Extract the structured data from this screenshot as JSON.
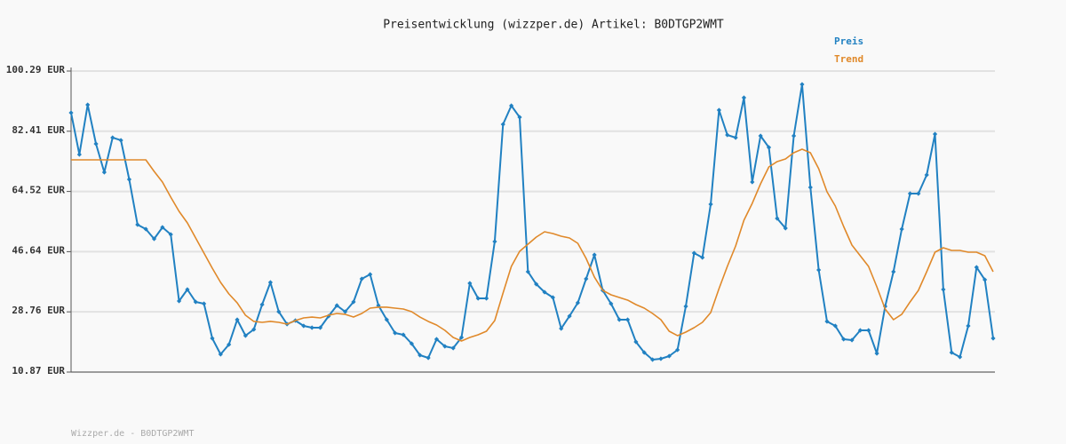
{
  "chart_data": {
    "type": "line",
    "title": "Preisentwicklung (wizzper.de) Artikel: B0DTGP2WMT",
    "footer": "Wizzper.de - B0DTGP2WMT",
    "ylim": [
      10.87,
      100.29
    ],
    "yticks": [
      {
        "value": 10.87,
        "label": "10.87 EUR"
      },
      {
        "value": 28.76,
        "label": "28.76 EUR"
      },
      {
        "value": 46.64,
        "label": "46.64 EUR"
      },
      {
        "value": 64.52,
        "label": "64.52 EUR"
      },
      {
        "value": 82.41,
        "label": "82.41 EUR"
      },
      {
        "value": 100.29,
        "label": "100.29 EUR"
      }
    ],
    "grid": true,
    "series": [
      {
        "name": "Preis",
        "color": "#2181c2",
        "markers": true,
        "values": [
          87.9,
          75.5,
          90.27,
          78.66,
          70.22,
          80.51,
          79.72,
          68.11,
          54.66,
          53.34,
          50.44,
          53.87,
          51.76,
          31.97,
          35.4,
          31.71,
          31.18,
          20.89,
          16.15,
          19.05,
          26.43,
          21.69,
          23.53,
          30.92,
          37.51,
          28.81,
          25.11,
          26.17,
          24.59,
          24.06,
          24.06,
          27.49,
          30.65,
          28.81,
          31.71,
          38.57,
          39.89,
          30.65,
          26.43,
          22.48,
          21.95,
          19.31,
          15.88,
          15.09,
          20.63,
          18.52,
          17.99,
          21.16,
          37.25,
          32.76,
          32.76,
          49.65,
          84.46,
          90.0,
          86.57,
          40.68,
          36.98,
          34.61,
          33.03,
          23.8,
          27.49,
          31.44,
          38.57,
          45.69,
          35.14,
          31.18,
          26.43,
          26.43,
          19.84,
          16.67,
          14.56,
          14.83,
          15.62,
          17.46,
          30.39,
          46.22,
          44.9,
          60.72,
          88.69,
          81.3,
          80.51,
          92.38,
          67.32,
          81.04,
          77.61,
          56.5,
          53.6,
          81.04,
          96.33,
          65.74,
          41.2,
          25.91,
          24.59,
          20.63,
          20.37,
          23.27,
          23.27,
          16.41,
          30.39,
          40.68,
          53.34,
          63.89,
          63.89,
          69.43,
          81.56,
          35.4,
          16.67,
          15.35,
          24.59,
          42.0,
          38.3,
          20.89
        ]
      },
      {
        "name": "Trend",
        "color": "#e0892a",
        "markers": false,
        "values": [
          73.91,
          73.91,
          73.91,
          73.91,
          73.91,
          73.91,
          73.91,
          73.91,
          73.91,
          73.91,
          70.48,
          67.32,
          62.83,
          58.61,
          55.19,
          50.7,
          46.22,
          41.73,
          37.51,
          34.08,
          31.44,
          27.75,
          25.91,
          25.64,
          25.91,
          25.64,
          25.11,
          26.17,
          26.96,
          27.22,
          26.96,
          27.75,
          28.28,
          28.02,
          27.22,
          28.28,
          29.86,
          30.13,
          30.13,
          29.86,
          29.6,
          28.81,
          27.22,
          25.91,
          24.85,
          23.27,
          21.16,
          20.1,
          21.16,
          21.95,
          23.0,
          26.17,
          34.35,
          42.26,
          46.74,
          48.85,
          50.96,
          52.55,
          52.02,
          51.23,
          50.7,
          49.12,
          44.63,
          39.09,
          35.14,
          33.82,
          33.03,
          32.24,
          30.92,
          29.86,
          28.28,
          26.43,
          23.0,
          21.69,
          22.74,
          24.06,
          25.64,
          28.54,
          35.67,
          42.26,
          48.33,
          55.98,
          60.99,
          66.79,
          71.8,
          73.39,
          74.18,
          76.02,
          77.08,
          76.02,
          71.28,
          64.42,
          60.2,
          54.13,
          48.59,
          45.43,
          42.26,
          36.19,
          29.6,
          26.43,
          28.02,
          31.71,
          35.14,
          40.68,
          46.48,
          47.8,
          47.01,
          47.01,
          46.48,
          46.48,
          45.43,
          40.68
        ]
      }
    ]
  }
}
